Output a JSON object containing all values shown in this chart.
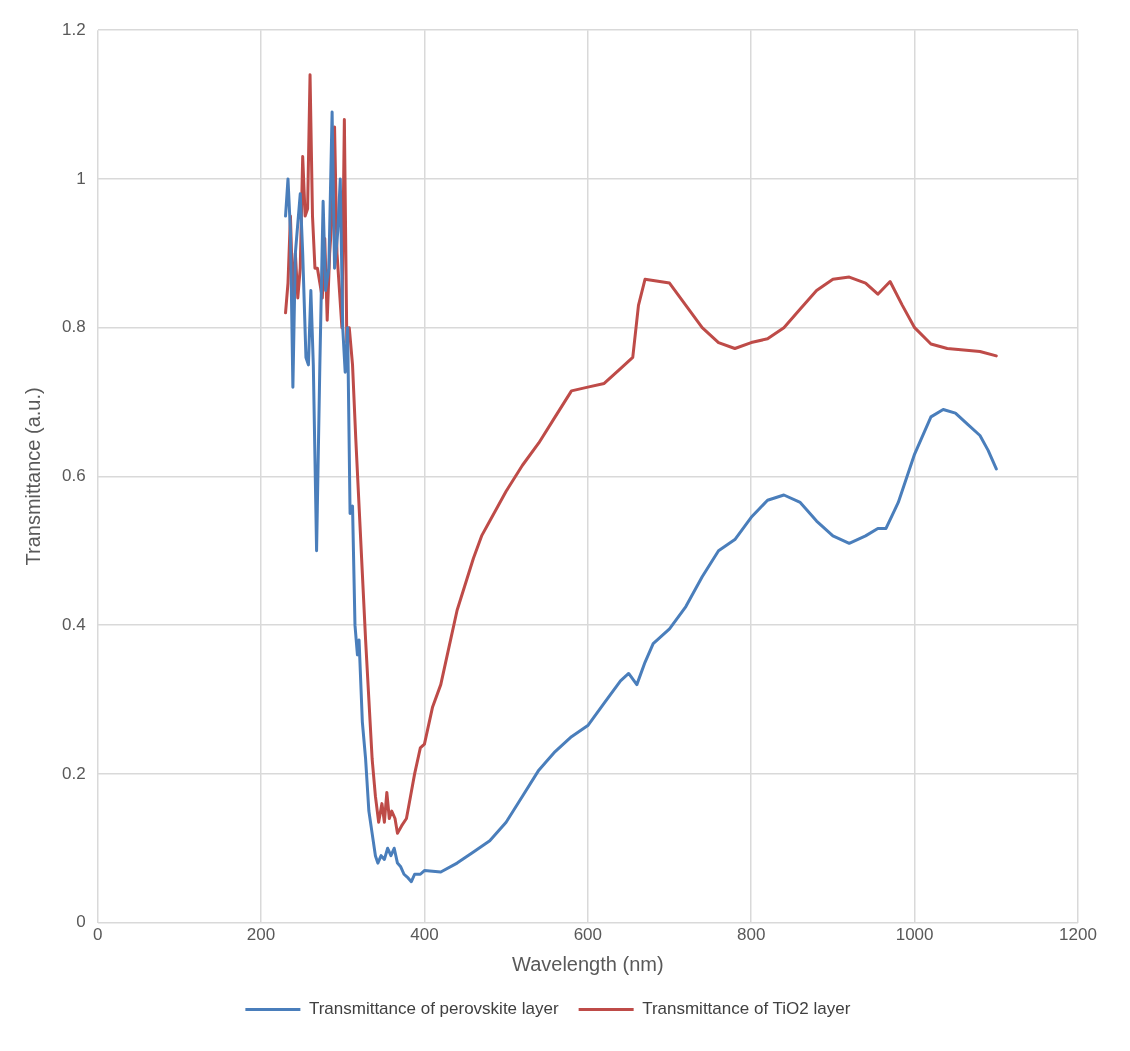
{
  "chart_data": {
    "type": "line",
    "xlabel": "Wavelength (nm)",
    "ylabel": "Transmittance (a.u.)",
    "xlim": [
      0,
      1200
    ],
    "xticks": [
      0,
      200,
      400,
      600,
      800,
      1000,
      1200
    ],
    "ylim": [
      0,
      1.2
    ],
    "yticks": [
      0,
      0.2,
      0.4,
      0.6,
      0.8,
      1,
      1.2
    ],
    "grid": true,
    "legend": "bottom",
    "marker": "none",
    "line_style": "solid",
    "series": [
      {
        "name": "Transmittance of perovskite layer",
        "color": "#4a7ebb",
        "x": [
          230,
          233,
          236,
          239,
          242,
          245,
          248,
          251,
          255,
          258,
          261,
          264,
          268,
          272,
          276,
          279,
          283,
          287,
          290,
          294,
          297,
          300,
          303,
          306,
          309,
          312,
          315,
          318,
          320,
          324,
          328,
          332,
          336,
          340,
          343,
          347,
          351,
          355,
          359,
          363,
          367,
          371,
          375,
          380,
          384,
          388,
          395,
          400,
          420,
          440,
          460,
          480,
          500,
          520,
          540,
          560,
          580,
          600,
          620,
          640,
          650,
          660,
          670,
          680,
          700,
          720,
          740,
          760,
          780,
          800,
          820,
          840,
          860,
          880,
          900,
          920,
          940,
          955,
          965,
          980,
          1000,
          1020,
          1035,
          1050,
          1065,
          1080,
          1090,
          1100
        ],
        "values": [
          0.95,
          1.0,
          0.93,
          0.72,
          0.9,
          0.94,
          0.98,
          0.9,
          0.76,
          0.75,
          0.85,
          0.75,
          0.5,
          0.75,
          0.97,
          0.85,
          0.88,
          1.09,
          0.88,
          0.93,
          1.0,
          0.8,
          0.74,
          0.8,
          0.55,
          0.56,
          0.4,
          0.36,
          0.38,
          0.27,
          0.22,
          0.15,
          0.12,
          0.09,
          0.08,
          0.09,
          0.085,
          0.1,
          0.09,
          0.1,
          0.08,
          0.075,
          0.065,
          0.06,
          0.055,
          0.065,
          0.065,
          0.07,
          0.068,
          0.08,
          0.095,
          0.11,
          0.135,
          0.17,
          0.205,
          0.23,
          0.25,
          0.265,
          0.295,
          0.325,
          0.335,
          0.32,
          0.35,
          0.375,
          0.395,
          0.425,
          0.465,
          0.5,
          0.515,
          0.545,
          0.568,
          0.575,
          0.565,
          0.54,
          0.52,
          0.51,
          0.52,
          0.53,
          0.53,
          0.565,
          0.63,
          0.68,
          0.69,
          0.685,
          0.67,
          0.655,
          0.635,
          0.61
        ]
      },
      {
        "name": "Transmittance of TiO2 layer",
        "color": "#be4b48",
        "x": [
          230,
          233,
          236,
          239,
          242,
          245,
          248,
          251,
          254,
          257,
          260,
          263,
          266,
          269,
          272,
          275,
          278,
          281,
          284,
          287,
          290,
          293,
          296,
          299,
          302,
          305,
          308,
          312,
          316,
          320,
          324,
          328,
          332,
          336,
          340,
          344,
          348,
          351,
          354,
          357,
          360,
          364,
          367,
          372,
          378,
          383,
          388,
          395,
          400,
          410,
          420,
          430,
          440,
          450,
          460,
          470,
          480,
          500,
          520,
          540,
          560,
          580,
          600,
          620,
          640,
          655,
          662,
          670,
          700,
          720,
          740,
          760,
          780,
          800,
          820,
          840,
          860,
          880,
          900,
          920,
          940,
          955,
          970,
          985,
          1000,
          1020,
          1040,
          1060,
          1080,
          1100
        ],
        "values": [
          0.82,
          0.86,
          0.95,
          0.84,
          0.9,
          0.84,
          0.88,
          1.03,
          0.95,
          0.96,
          1.14,
          0.95,
          0.88,
          0.88,
          0.86,
          0.84,
          0.92,
          0.81,
          0.9,
          0.95,
          1.07,
          0.9,
          0.85,
          0.8,
          1.08,
          0.78,
          0.8,
          0.75,
          0.65,
          0.56,
          0.47,
          0.38,
          0.3,
          0.22,
          0.17,
          0.135,
          0.16,
          0.135,
          0.175,
          0.14,
          0.15,
          0.14,
          0.12,
          0.13,
          0.14,
          0.17,
          0.2,
          0.235,
          0.24,
          0.29,
          0.32,
          0.37,
          0.42,
          0.455,
          0.49,
          0.52,
          0.54,
          0.58,
          0.615,
          0.645,
          0.68,
          0.715,
          0.72,
          0.725,
          0.745,
          0.76,
          0.83,
          0.865,
          0.86,
          0.83,
          0.8,
          0.78,
          0.772,
          0.78,
          0.785,
          0.8,
          0.825,
          0.85,
          0.865,
          0.868,
          0.86,
          0.845,
          0.862,
          0.83,
          0.8,
          0.778,
          0.772,
          0.77,
          0.768,
          0.762
        ]
      }
    ]
  }
}
